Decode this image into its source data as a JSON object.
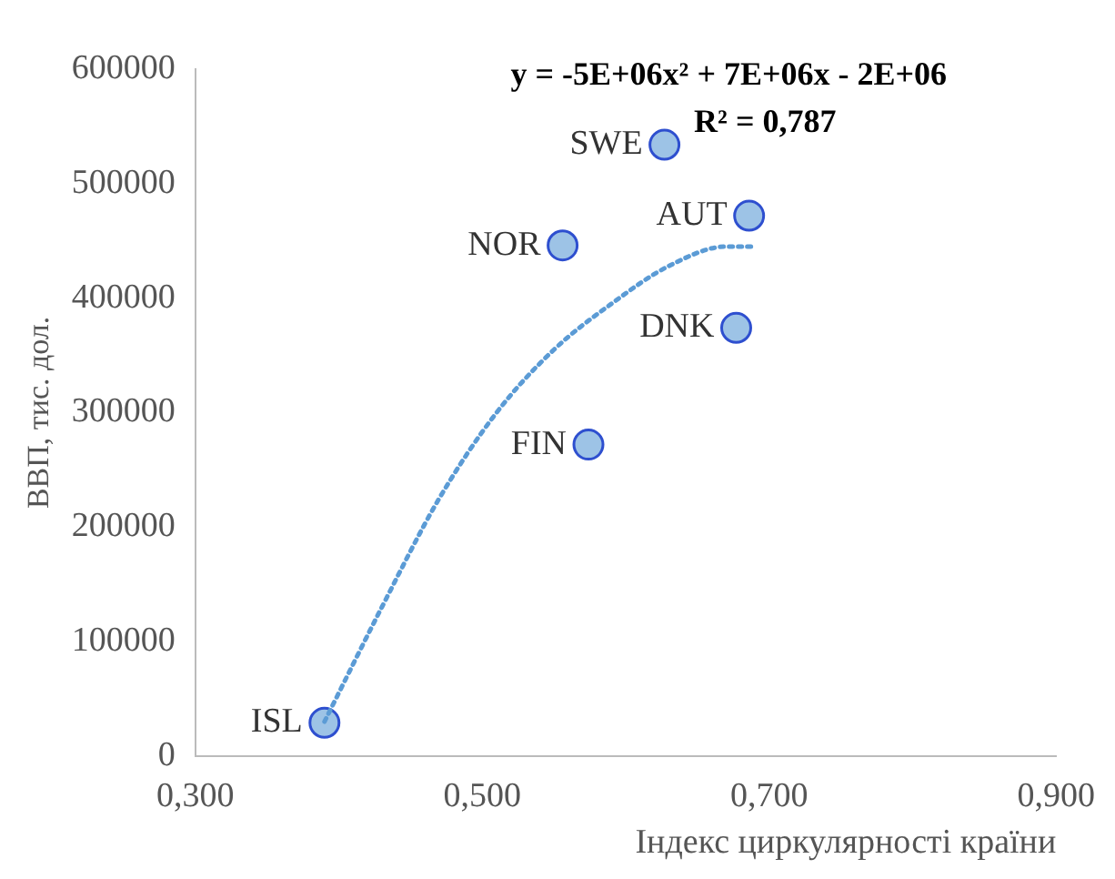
{
  "chart_data": {
    "type": "scatter",
    "xlabel": "Індекс циркулярності країни",
    "ylabel": "ВВП, тис. дол.",
    "series": [
      {
        "type": "scatter",
        "color": "#9dc3e6",
        "x": [
          0.39,
          0.574,
          0.556,
          0.627,
          0.686,
          0.677
        ],
        "values": [
          29000,
          272000,
          446000,
          534000,
          472000,
          374000
        ]
      },
      {
        "type": "line",
        "color": "#5b9bd5",
        "line_style": "dotted",
        "marker": "none",
        "x": [
          0.39,
          0.43,
          0.47,
          0.51,
          0.55,
          0.59,
          0.63,
          0.67,
          0.69
        ],
        "values": [
          30000,
          130000,
          225000,
          300000,
          355000,
          395000,
          428000,
          445000,
          445000
        ]
      }
    ],
    "xlim": [
      0.3,
      0.9
    ],
    "xticks": [
      {
        "value": 0.3,
        "label": "0,300"
      },
      {
        "value": 0.5,
        "label": "0,500"
      },
      {
        "value": 0.7,
        "label": "0,700"
      },
      {
        "value": 0.9,
        "label": "0,900"
      }
    ],
    "ylim": [
      0,
      600000
    ],
    "yticks": [
      0,
      100000,
      200000,
      300000,
      400000,
      500000,
      600000
    ],
    "grid": false,
    "legend": false,
    "marker": "circle",
    "annotations": [
      {
        "text": "ISL",
        "x": 0.39,
        "y": 29000
      },
      {
        "text": "FIN",
        "x": 0.574,
        "y": 272000
      },
      {
        "text": "NOR",
        "x": 0.556,
        "y": 446000
      },
      {
        "text": "SWE",
        "x": 0.627,
        "y": 534000
      },
      {
        "text": "AUT",
        "x": 0.686,
        "y": 472000
      },
      {
        "text": "DNK",
        "x": 0.677,
        "y": 374000
      },
      "y = -5E+06x² + 7E+06x - 2E+06",
      "R² = 0,787"
    ]
  }
}
